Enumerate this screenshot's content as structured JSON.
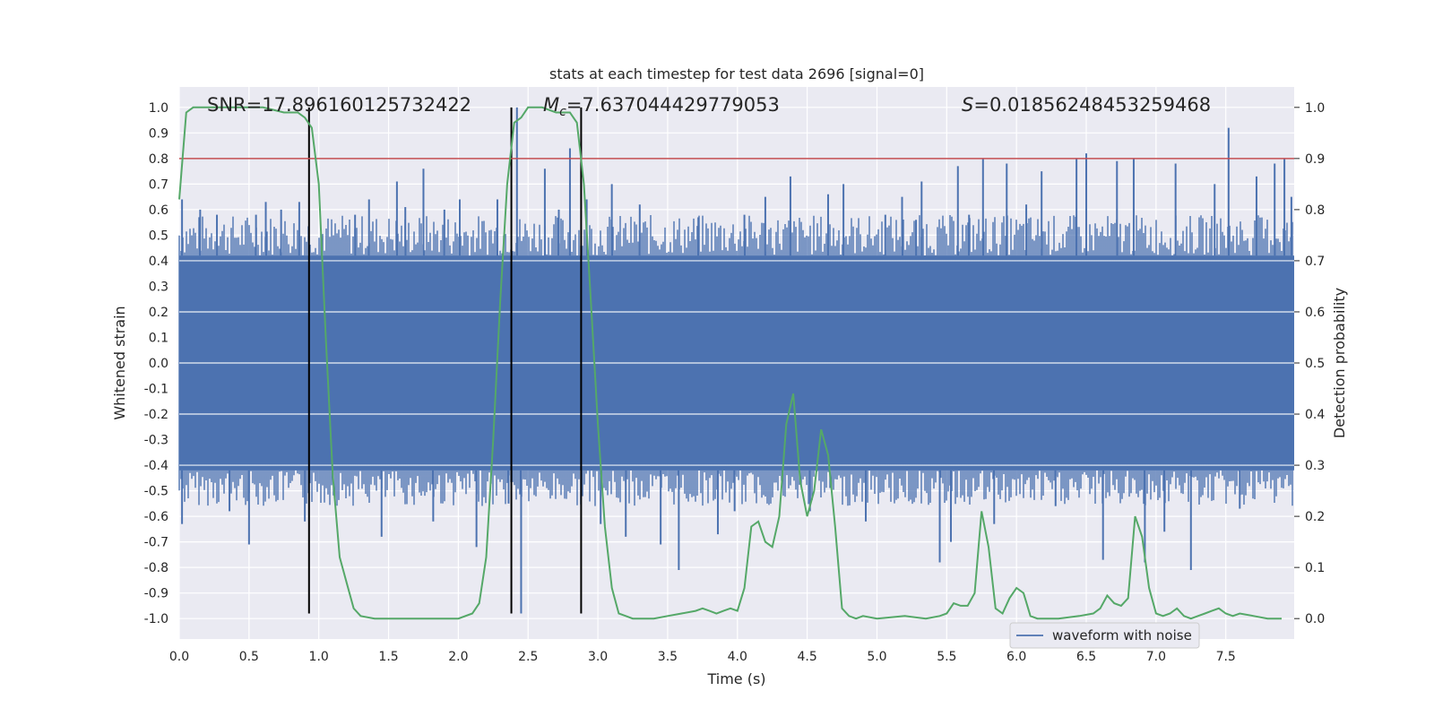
{
  "chart_data": {
    "type": "line",
    "title": "stats at each timestep for test data 2696 [signal=0]",
    "xlabel": "Time (s)",
    "ylabel": "Whitened strain",
    "y2label": "Detection probability",
    "xlim": [
      0.0,
      7.99
    ],
    "ylim": [
      -1.08,
      1.08
    ],
    "y2lim": [
      -0.04,
      1.04
    ],
    "xticks": [
      "0.0",
      "0.5",
      "1.0",
      "1.5",
      "2.0",
      "2.5",
      "3.0",
      "3.5",
      "4.0",
      "4.5",
      "5.0",
      "5.5",
      "6.0",
      "6.5",
      "7.0",
      "7.5"
    ],
    "yticks": [
      "1.0",
      "0.9",
      "0.8",
      "0.7",
      "0.6",
      "0.5",
      "0.4",
      "0.3",
      "0.2",
      "0.1",
      "0.0",
      "-0.1",
      "-0.2",
      "-0.3",
      "-0.4",
      "-0.5",
      "-0.6",
      "-0.7",
      "-0.8",
      "-0.9",
      "-1.0"
    ],
    "y2ticks": [
      "1.0",
      "0.9",
      "0.8",
      "0.7",
      "0.6",
      "0.5",
      "0.4",
      "0.3",
      "0.2",
      "0.1",
      "0.0"
    ],
    "grid": true,
    "legend": {
      "position": "lower-right",
      "entries": [
        "waveform with noise"
      ]
    },
    "annotations": {
      "snr_label": "SNR=17.896160125732422",
      "mc_symbol": "M",
      "mc_subscript": "c",
      "mc_value": "=7.637044429779053",
      "s_symbol": "S",
      "s_value": "=0.01856248453259468"
    },
    "threshold": {
      "y2": 0.9,
      "color": "#c44e52"
    },
    "vertical_lines": [
      0.93,
      2.38,
      2.88
    ],
    "vertical_line_range": [
      -0.98,
      1.0
    ],
    "series": [
      {
        "name": "waveform with noise",
        "color": "#4c72b0",
        "style": "noise-band",
        "band_y": [
          -0.42,
          0.42
        ],
        "spikes": [
          [
            0.02,
            0.64
          ],
          [
            0.02,
            -0.63
          ],
          [
            0.15,
            0.6
          ],
          [
            0.27,
            0.58
          ],
          [
            0.36,
            -0.58
          ],
          [
            0.5,
            -0.71
          ],
          [
            0.55,
            0.58
          ],
          [
            0.62,
            0.63
          ],
          [
            0.73,
            0.6
          ],
          [
            0.86,
            0.63
          ],
          [
            0.9,
            -0.62
          ],
          [
            1.26,
            0.58
          ],
          [
            1.36,
            0.64
          ],
          [
            1.45,
            -0.68
          ],
          [
            1.56,
            0.71
          ],
          [
            1.62,
            0.61
          ],
          [
            1.75,
            0.76
          ],
          [
            1.82,
            -0.62
          ],
          [
            1.9,
            0.6
          ],
          [
            2.01,
            0.64
          ],
          [
            2.13,
            -0.72
          ],
          [
            2.28,
            0.64
          ],
          [
            2.36,
            -0.55
          ],
          [
            2.42,
            1.0
          ],
          [
            2.45,
            -0.98
          ],
          [
            2.62,
            0.76
          ],
          [
            2.72,
            0.6
          ],
          [
            2.8,
            0.84
          ],
          [
            2.92,
            0.64
          ],
          [
            3.02,
            -0.63
          ],
          [
            3.1,
            0.7
          ],
          [
            3.2,
            -0.68
          ],
          [
            3.3,
            0.62
          ],
          [
            3.45,
            -0.71
          ],
          [
            3.58,
            -0.81
          ],
          [
            3.72,
            0.57
          ],
          [
            3.86,
            -0.67
          ],
          [
            3.98,
            -0.58
          ],
          [
            4.05,
            0.58
          ],
          [
            4.2,
            0.65
          ],
          [
            4.38,
            0.73
          ],
          [
            4.52,
            -0.58
          ],
          [
            4.65,
            0.66
          ],
          [
            4.76,
            0.7
          ],
          [
            4.92,
            -0.62
          ],
          [
            5.06,
            0.58
          ],
          [
            5.18,
            0.65
          ],
          [
            5.28,
            0.56
          ],
          [
            5.32,
            0.71
          ],
          [
            5.45,
            -0.78
          ],
          [
            5.53,
            -0.7
          ],
          [
            5.58,
            0.77
          ],
          [
            5.66,
            0.58
          ],
          [
            5.76,
            0.8
          ],
          [
            5.84,
            -0.63
          ],
          [
            5.93,
            0.78
          ],
          [
            6.07,
            0.62
          ],
          [
            6.18,
            0.75
          ],
          [
            6.28,
            -0.56
          ],
          [
            6.43,
            0.8
          ],
          [
            6.5,
            0.82
          ],
          [
            6.62,
            -0.77
          ],
          [
            6.72,
            0.79
          ],
          [
            6.84,
            0.8
          ],
          [
            6.92,
            -0.78
          ],
          [
            7.06,
            -0.66
          ],
          [
            7.14,
            0.78
          ],
          [
            7.25,
            -0.81
          ],
          [
            7.42,
            0.7
          ],
          [
            7.52,
            0.92
          ],
          [
            7.6,
            -0.57
          ],
          [
            7.72,
            0.73
          ],
          [
            7.85,
            0.78
          ],
          [
            7.92,
            0.8
          ],
          [
            7.97,
            0.65
          ]
        ]
      },
      {
        "name": "",
        "axis": "right",
        "color": "#55a868",
        "x": [
          0.0,
          0.05,
          0.1,
          0.2,
          0.4,
          0.6,
          0.75,
          0.85,
          0.9,
          0.95,
          1.0,
          1.05,
          1.1,
          1.15,
          1.2,
          1.25,
          1.3,
          1.4,
          1.6,
          1.8,
          2.0,
          2.1,
          2.15,
          2.2,
          2.25,
          2.3,
          2.35,
          2.4,
          2.45,
          2.5,
          2.6,
          2.7,
          2.8,
          2.85,
          2.9,
          2.95,
          3.0,
          3.05,
          3.1,
          3.15,
          3.2,
          3.25,
          3.4,
          3.5,
          3.6,
          3.7,
          3.75,
          3.8,
          3.85,
          3.9,
          3.95,
          4.0,
          4.05,
          4.1,
          4.15,
          4.2,
          4.25,
          4.3,
          4.35,
          4.4,
          4.45,
          4.5,
          4.55,
          4.6,
          4.65,
          4.7,
          4.75,
          4.8,
          4.85,
          4.9,
          5.0,
          5.2,
          5.35,
          5.45,
          5.5,
          5.55,
          5.6,
          5.65,
          5.7,
          5.75,
          5.8,
          5.85,
          5.9,
          5.95,
          6.0,
          6.05,
          6.1,
          6.15,
          6.3,
          6.45,
          6.55,
          6.6,
          6.65,
          6.7,
          6.75,
          6.8,
          6.85,
          6.9,
          6.95,
          7.0,
          7.05,
          7.1,
          7.15,
          7.2,
          7.25,
          7.3,
          7.35,
          7.4,
          7.45,
          7.5,
          7.55,
          7.6,
          7.7,
          7.8,
          7.9
        ],
        "y": [
          0.82,
          0.99,
          1.0,
          1.0,
          1.0,
          1.0,
          0.99,
          0.99,
          0.98,
          0.96,
          0.85,
          0.55,
          0.28,
          0.12,
          0.07,
          0.02,
          0.005,
          0.0,
          0.0,
          0.0,
          0.0,
          0.01,
          0.03,
          0.12,
          0.35,
          0.62,
          0.85,
          0.97,
          0.98,
          1.0,
          1.0,
          0.99,
          0.99,
          0.97,
          0.85,
          0.62,
          0.38,
          0.18,
          0.06,
          0.01,
          0.005,
          0.0,
          0.0,
          0.005,
          0.01,
          0.015,
          0.02,
          0.015,
          0.01,
          0.015,
          0.02,
          0.015,
          0.06,
          0.18,
          0.19,
          0.15,
          0.14,
          0.2,
          0.38,
          0.44,
          0.27,
          0.2,
          0.25,
          0.37,
          0.32,
          0.18,
          0.02,
          0.005,
          0.0,
          0.005,
          0.0,
          0.005,
          0.0,
          0.005,
          0.01,
          0.03,
          0.025,
          0.025,
          0.05,
          0.21,
          0.14,
          0.02,
          0.01,
          0.04,
          0.06,
          0.05,
          0.005,
          0.0,
          0.0,
          0.005,
          0.01,
          0.02,
          0.045,
          0.03,
          0.025,
          0.04,
          0.2,
          0.16,
          0.06,
          0.01,
          0.005,
          0.01,
          0.02,
          0.005,
          0.0,
          0.005,
          0.01,
          0.015,
          0.02,
          0.01,
          0.005,
          0.01,
          0.005,
          0.0,
          0.0
        ]
      }
    ]
  }
}
